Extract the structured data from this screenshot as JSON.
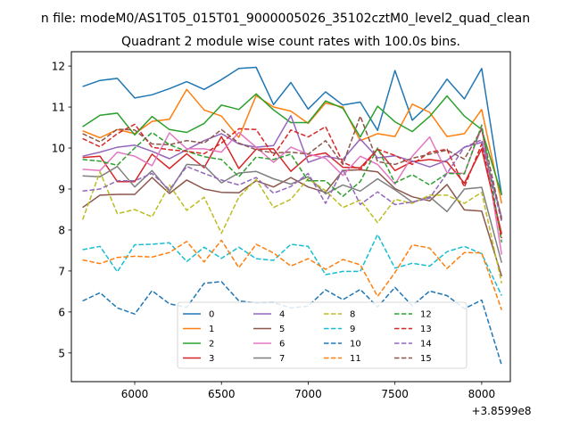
{
  "chart_data": {
    "type": "line",
    "suptitle": "n file: modeM0/AS1T05_015T01_9000005026_35102cztM0_level2_quad_clean",
    "title": "Quadrant 2 module wise count rates with 100.0s bins.",
    "xlabel": "",
    "ylabel": "",
    "x_offset_label": "+3.8599e8",
    "xlim": [
      5635,
      8165
    ],
    "ylim": [
      4.3,
      12.35
    ],
    "xticks": [
      6000,
      6500,
      7000,
      7500,
      8000
    ],
    "yticks": [
      5,
      6,
      7,
      8,
      9,
      10,
      11,
      12
    ],
    "grid": false,
    "legend_location": "lower center",
    "legend_columns": 4,
    "x": [
      5700,
      5800,
      5900,
      6000,
      6100,
      6200,
      6300,
      6400,
      6500,
      6600,
      6700,
      6800,
      6900,
      7000,
      7100,
      7200,
      7300,
      7400,
      7500,
      7600,
      7700,
      7800,
      7900,
      8000,
      8115
    ],
    "series": [
      {
        "name": "0",
        "color": "#1f77b4",
        "dash": "solid",
        "values": [
          11.5,
          11.65,
          11.7,
          11.22,
          11.3,
          11.45,
          11.62,
          11.43,
          11.67,
          11.94,
          11.97,
          11.06,
          11.6,
          10.95,
          11.37,
          11.05,
          11.12,
          10.43,
          11.89,
          10.68,
          11.08,
          11.68,
          11.2,
          11.94,
          8.85
        ]
      },
      {
        "name": "1",
        "color": "#ff7f0e",
        "dash": "solid",
        "values": [
          10.42,
          10.25,
          10.45,
          10.35,
          10.65,
          10.7,
          11.43,
          10.93,
          10.78,
          10.26,
          11.28,
          11.0,
          10.9,
          10.6,
          11.1,
          11.0,
          10.18,
          10.35,
          10.28,
          11.07,
          10.87,
          10.28,
          10.35,
          10.94,
          8.65
        ]
      },
      {
        "name": "2",
        "color": "#2ca02c",
        "dash": "solid",
        "values": [
          10.52,
          10.8,
          10.85,
          10.32,
          10.77,
          10.45,
          10.38,
          10.6,
          11.05,
          10.94,
          11.32,
          10.93,
          10.62,
          10.62,
          11.15,
          10.97,
          10.27,
          11.02,
          10.64,
          10.4,
          10.77,
          11.27,
          10.78,
          10.45,
          8.85
        ]
      },
      {
        "name": "3",
        "color": "#d62728",
        "dash": "solid",
        "values": [
          9.77,
          9.8,
          9.18,
          9.18,
          9.85,
          9.5,
          9.86,
          9.52,
          10.28,
          9.5,
          9.97,
          9.98,
          9.43,
          9.8,
          9.88,
          9.53,
          9.52,
          9.97,
          9.45,
          9.67,
          9.72,
          9.66,
          9.14,
          9.98,
          7.9
        ]
      },
      {
        "name": "4",
        "color": "#9467bd",
        "dash": "solid",
        "values": [
          9.8,
          9.9,
          10.02,
          10.07,
          9.92,
          9.74,
          9.96,
          10.18,
          10.35,
          10.1,
          10.02,
          10.06,
          10.79,
          9.65,
          9.8,
          9.72,
          10.22,
          9.76,
          9.81,
          9.68,
          9.54,
          9.7,
          10.02,
          10.14,
          8.3
        ]
      },
      {
        "name": "5",
        "color": "#8c564b",
        "dash": "solid",
        "values": [
          8.55,
          8.85,
          8.87,
          8.87,
          9.28,
          8.89,
          9.22,
          9.0,
          8.92,
          8.91,
          9.2,
          9.05,
          9.28,
          9.05,
          8.92,
          9.45,
          9.47,
          9.42,
          9.01,
          8.81,
          8.71,
          9.11,
          8.49,
          8.46,
          6.87
        ]
      },
      {
        "name": "6",
        "color": "#e377c2",
        "dash": "solid",
        "values": [
          9.48,
          9.45,
          9.9,
          9.8,
          9.57,
          10.37,
          9.98,
          9.98,
          9.9,
          10.38,
          10.02,
          9.65,
          10.02,
          9.85,
          9.75,
          9.33,
          9.8,
          9.6,
          9.12,
          9.8,
          10.27,
          9.4,
          9.38,
          10.5,
          7.4
        ]
      },
      {
        "name": "7",
        "color": "#7f7f7f",
        "dash": "solid",
        "values": [
          9.32,
          9.3,
          9.55,
          9.05,
          9.45,
          8.94,
          9.6,
          9.57,
          9.15,
          9.39,
          9.43,
          9.25,
          9.12,
          9.3,
          8.88,
          9.1,
          8.95,
          9.25,
          8.98,
          8.68,
          8.81,
          8.45,
          9.0,
          9.04,
          7.2
        ]
      },
      {
        "name": "8",
        "color": "#bcbd22",
        "dash": "dashed",
        "values": [
          8.25,
          9.42,
          8.4,
          8.5,
          8.32,
          9.1,
          8.48,
          8.8,
          7.92,
          8.8,
          9.23,
          8.55,
          8.75,
          9.25,
          8.96,
          8.55,
          8.73,
          8.18,
          8.75,
          8.65,
          8.85,
          8.85,
          8.65,
          8.92,
          6.7
        ]
      },
      {
        "name": "9",
        "color": "#17becf",
        "dash": "dashed",
        "values": [
          7.52,
          7.6,
          6.98,
          7.64,
          7.65,
          7.69,
          7.23,
          7.58,
          7.31,
          7.58,
          7.3,
          7.26,
          7.65,
          7.6,
          6.91,
          6.99,
          6.99,
          7.89,
          7.07,
          7.19,
          7.12,
          7.47,
          7.6,
          7.42,
          6.4
        ]
      },
      {
        "name": "10",
        "color": "#1f77b4",
        "dash": "dashed",
        "values": [
          6.27,
          6.47,
          6.1,
          5.95,
          6.52,
          6.2,
          6.11,
          6.7,
          6.74,
          6.27,
          6.22,
          6.23,
          6.1,
          6.14,
          6.54,
          6.3,
          6.55,
          6.12,
          6.6,
          6.15,
          6.51,
          6.4,
          6.08,
          6.29,
          4.7
        ]
      },
      {
        "name": "11",
        "color": "#ff7f0e",
        "dash": "dashed",
        "values": [
          7.27,
          7.18,
          7.33,
          7.36,
          7.34,
          7.45,
          7.72,
          7.22,
          7.75,
          7.08,
          7.65,
          7.44,
          7.12,
          7.3,
          7.04,
          7.28,
          7.15,
          6.38,
          6.96,
          7.64,
          7.56,
          7.06,
          7.45,
          7.44,
          6.05
        ]
      },
      {
        "name": "12",
        "color": "#2ca02c",
        "dash": "dashed",
        "values": [
          9.72,
          9.68,
          9.58,
          10.0,
          10.38,
          10.08,
          9.92,
          9.79,
          9.72,
          9.3,
          9.78,
          9.72,
          9.85,
          9.2,
          9.2,
          8.82,
          9.18,
          10.0,
          9.15,
          9.35,
          9.1,
          9.38,
          9.37,
          10.56,
          7.7
        ]
      },
      {
        "name": "13",
        "color": "#d62728",
        "dash": "dashed",
        "values": [
          10.23,
          10.03,
          10.35,
          10.58,
          10.02,
          9.96,
          9.92,
          9.86,
          10.12,
          10.47,
          10.45,
          9.82,
          10.44,
          10.27,
          10.52,
          9.65,
          9.47,
          9.97,
          9.82,
          9.6,
          9.9,
          9.97,
          9.05,
          10.1,
          7.8
        ]
      },
      {
        "name": "14",
        "color": "#9467bd",
        "dash": "dashed",
        "values": [
          8.95,
          9.0,
          9.2,
          9.2,
          9.38,
          8.98,
          9.55,
          9.38,
          9.22,
          9.1,
          9.28,
          8.9,
          9.06,
          9.38,
          8.65,
          9.48,
          8.62,
          8.93,
          8.62,
          8.68,
          8.78,
          9.38,
          10.02,
          10.2,
          8.2
        ]
      },
      {
        "name": "15",
        "color": "#8c564b",
        "dash": "dashed",
        "values": [
          10.35,
          10.15,
          10.46,
          10.44,
          10.1,
          10.08,
          10.18,
          10.12,
          10.45,
          10.12,
          9.96,
          9.88,
          9.9,
          9.85,
          10.18,
          9.6,
          10.78,
          9.67,
          9.6,
          9.75,
          9.85,
          9.95,
          9.73,
          10.46,
          8.25
        ]
      }
    ]
  }
}
